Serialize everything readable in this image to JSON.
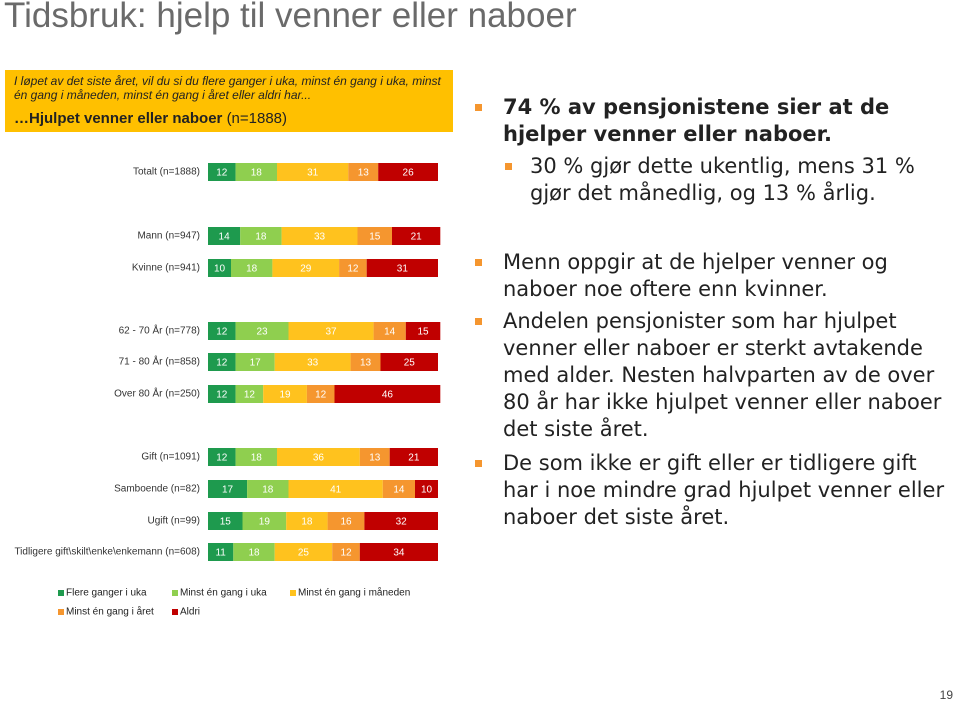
{
  "title": "Tidsbruk: hjelp til venner eller naboer",
  "question": "I løpet av det siste året, vil du si du flere ganger i uka, minst én gang i uka, minst én gang i måneden, minst én gang i året eller aldri har...",
  "subtitle_bold": "…Hjulpet venner eller naboer",
  "subtitle_n": "(n=1888)",
  "bullets": [
    {
      "level": 1,
      "bold": true,
      "text": "74 % av pensjonistene sier at de hjelper venner eller naboer."
    },
    {
      "level": 2,
      "bold": false,
      "text": "30 % gjør dette ukentlig, mens 31 % gjør det månedlig, og 13 % årlig."
    },
    {
      "level": 1,
      "bold": false,
      "text": "Menn oppgir at de hjelper venner og naboer noe oftere enn kvinner."
    },
    {
      "level": 1,
      "bold": false,
      "text": "Andelen pensjonister som har hjulpet venner eller naboer er sterkt avtakende med alder. Nesten halvparten av de over 80 år har ikke hjulpet venner eller naboer det siste året."
    },
    {
      "level": 1,
      "bold": false,
      "text": "De som ikke er gift eller er tidligere gift har i noe mindre grad hjulpet venner eller naboer det siste året."
    }
  ],
  "page_number": "19",
  "chart_data": {
    "type": "stacked-hbar",
    "xlim": [
      0,
      100
    ],
    "categories": [
      "Totalt (n=1888)",
      "Mann (n=947)",
      "Kvinne (n=941)",
      "62 - 70 År (n=778)",
      "71 - 80 År (n=858)",
      "Over 80 År (n=250)",
      "Gift (n=1091)",
      "Samboende (n=82)",
      "Ugift (n=99)",
      "Tidligere gift\\skilt\\enke\\enkemann (n=608)"
    ],
    "series": [
      {
        "name": "Flere ganger i uka",
        "color": "#1e9a4e",
        "values": [
          12,
          14,
          10,
          12,
          12,
          12,
          12,
          17,
          15,
          11
        ]
      },
      {
        "name": "Minst én gang i uka",
        "color": "#8fcf4f",
        "values": [
          18,
          18,
          18,
          23,
          17,
          12,
          18,
          18,
          19,
          18
        ]
      },
      {
        "name": "Minst én gang i måneden",
        "color": "#ffc21e",
        "values": [
          31,
          33,
          29,
          37,
          33,
          19,
          36,
          41,
          18,
          25
        ]
      },
      {
        "name": "Minst én gang i året",
        "color": "#f5962f",
        "values": [
          13,
          15,
          12,
          14,
          13,
          12,
          13,
          14,
          16,
          12
        ]
      },
      {
        "name": "Aldri",
        "color": "#c00000",
        "values": [
          26,
          21,
          31,
          15,
          25,
          46,
          21,
          10,
          32,
          34
        ]
      }
    ]
  }
}
